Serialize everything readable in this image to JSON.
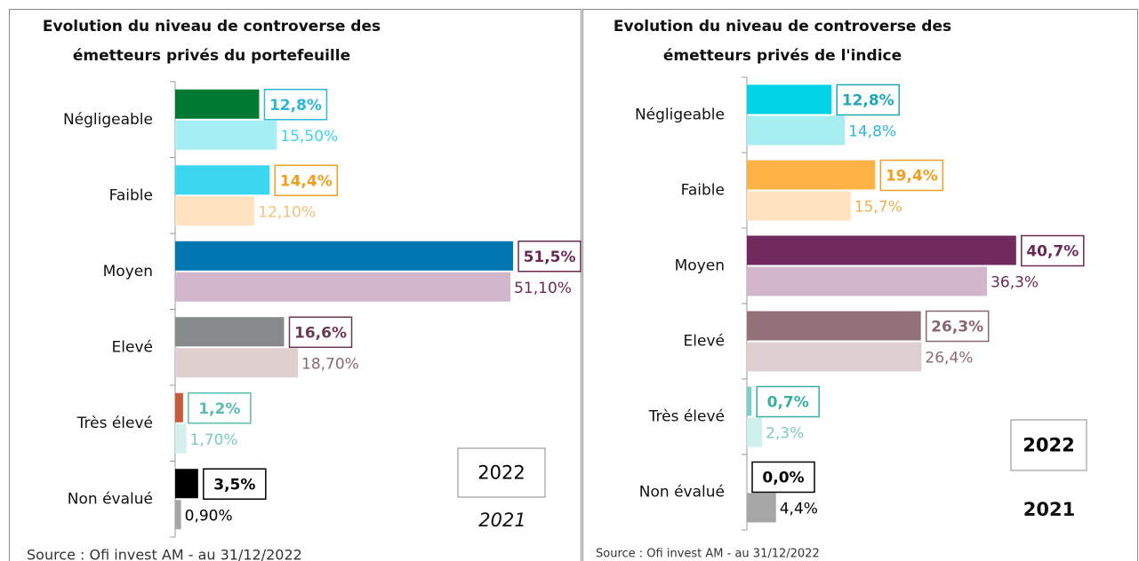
{
  "chart_data": [
    {
      "type": "bar",
      "orientation": "horizontal",
      "title": "Evolution du niveau de controverse des émetteurs privés du portefeuille",
      "categories": [
        "Négligeable",
        "Faible",
        "Moyen",
        "Elevé",
        "Très élevé",
        "Non évalué"
      ],
      "series": [
        {
          "name": "2022",
          "values": [
            12.8,
            14.4,
            51.5,
            16.6,
            1.2,
            3.5
          ],
          "value_labels": [
            "12,8%",
            "14,4%",
            "51,5%",
            "16,6%",
            "1,2%",
            "3,5%"
          ],
          "colors": [
            "#007a33",
            "#3bd6ef",
            "#0077b0",
            "#868a8a",
            "#c85a3c",
            "#000000"
          ],
          "label_colors": [
            "#2bb8d8",
            "#f0a020",
            "#6a2a55",
            "#6a3a55",
            "#5cbcb0",
            "#000000"
          ]
        },
        {
          "name": "2021",
          "values": [
            15.5,
            12.1,
            51.1,
            18.7,
            1.7,
            0.9
          ],
          "value_labels": [
            "15,50%",
            "12,10%",
            "51,10%",
            "18,70%",
            "1,70%",
            "0,90%"
          ],
          "colors": [
            "#a6f0f5",
            "#ffe3c0",
            "#d1b6cc",
            "#dfcfcf",
            "#d4f0ec",
            "#a6a6a6"
          ],
          "label_colors": [
            "#3bd6ef",
            "#f5c27a",
            "#6a2a55",
            "#8a6a70",
            "#7ccbc0",
            "#000000"
          ]
        }
      ],
      "legend": "lower right",
      "source": "Source : Ofi invest AM - au 31/12/2022"
    },
    {
      "type": "bar",
      "orientation": "horizontal",
      "title": "Evolution du niveau de controverse des émetteurs privés de l'indice",
      "categories": [
        "Négligeable",
        "Faible",
        "Moyen",
        "Elevé",
        "Très élevé",
        "Non évalué"
      ],
      "series": [
        {
          "name": "2022",
          "values": [
            12.8,
            19.4,
            40.7,
            26.3,
            0.7,
            0.0
          ],
          "value_labels": [
            "12,8%",
            "19,4%",
            "40,7%",
            "26,3%",
            "0,7%",
            "0,0%"
          ],
          "colors": [
            "#00d4e6",
            "#ffb347",
            "#722a5e",
            "#937178",
            "#7ccfc8",
            "#000000"
          ],
          "label_colors": [
            "#1fa8b8",
            "#f0a020",
            "#6a2a55",
            "#8a6670",
            "#3aaea0",
            "#000000"
          ]
        },
        {
          "name": "2021",
          "values": [
            14.8,
            15.7,
            36.3,
            26.4,
            2.3,
            4.4
          ],
          "value_labels": [
            "14,8%",
            "15,7%",
            "36,3%",
            "26,4%",
            "2,3%",
            "4,4%"
          ],
          "colors": [
            "#a7eef3",
            "#ffe2c0",
            "#d2b6cb",
            "#dfcfd1",
            "#d0f0ec",
            "#a6a6a6"
          ],
          "label_colors": [
            "#2bb8d8",
            "#f0b050",
            "#6a2a55",
            "#8a6a70",
            "#7ccbc0",
            "#000000"
          ]
        }
      ],
      "legend": "lower right",
      "source": "Source : Ofi invest AM - au 31/12/2022"
    }
  ]
}
